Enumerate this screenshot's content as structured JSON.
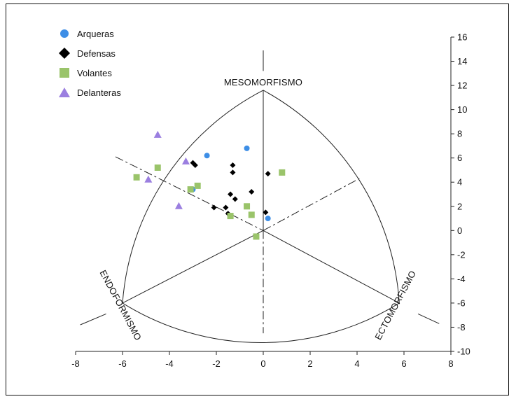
{
  "chart_data": {
    "type": "scatter",
    "title": "",
    "xlabel": "",
    "ylabel": "",
    "xlim": [
      -8,
      8
    ],
    "ylim": [
      -10,
      16
    ],
    "x_ticks": [
      -8,
      -6,
      -4,
      -2,
      0,
      2,
      4,
      6,
      8
    ],
    "y_ticks": [
      16,
      14,
      12,
      10,
      8,
      6,
      4,
      2,
      0,
      -2,
      -4,
      -6,
      -8,
      -10
    ],
    "grid": false,
    "legend_position": "top-left",
    "triangle_labels": {
      "top": "MESOMORFISMO",
      "left": "ENDOFORMISMO",
      "right": "ECTOMORFISMO"
    },
    "series": [
      {
        "name": "Arqueras",
        "marker": "circle",
        "color": "#3d8ee6",
        "points": [
          [
            -2.4,
            6.2
          ],
          [
            -0.7,
            6.8
          ],
          [
            -3.0,
            3.4
          ],
          [
            0.2,
            1.0
          ]
        ]
      },
      {
        "name": "Defensas",
        "marker": "diamond",
        "color": "#000000",
        "points": [
          [
            -3.0,
            5.6
          ],
          [
            -2.9,
            5.4
          ],
          [
            -1.3,
            5.4
          ],
          [
            -1.3,
            4.8
          ],
          [
            0.2,
            4.7
          ],
          [
            -1.4,
            3.0
          ],
          [
            -0.5,
            3.2
          ],
          [
            -1.2,
            2.6
          ],
          [
            -2.1,
            1.9
          ],
          [
            -1.6,
            1.9
          ],
          [
            -1.5,
            1.4
          ],
          [
            0.1,
            1.5
          ]
        ]
      },
      {
        "name": "Volantes",
        "marker": "square",
        "color": "#9ac46a",
        "points": [
          [
            -4.5,
            5.2
          ],
          [
            -5.4,
            4.4
          ],
          [
            -3.1,
            3.4
          ],
          [
            -2.8,
            3.7
          ],
          [
            0.8,
            4.8
          ],
          [
            -0.7,
            2.0
          ],
          [
            -0.5,
            1.3
          ],
          [
            -1.4,
            1.2
          ],
          [
            -0.3,
            -0.5
          ]
        ]
      },
      {
        "name": "Delanteras",
        "marker": "triangle",
        "color": "#9b7fe0",
        "points": [
          [
            -4.5,
            7.9
          ],
          [
            -3.3,
            5.7
          ],
          [
            -4.9,
            4.2
          ],
          [
            -3.6,
            2.0
          ]
        ]
      }
    ]
  }
}
